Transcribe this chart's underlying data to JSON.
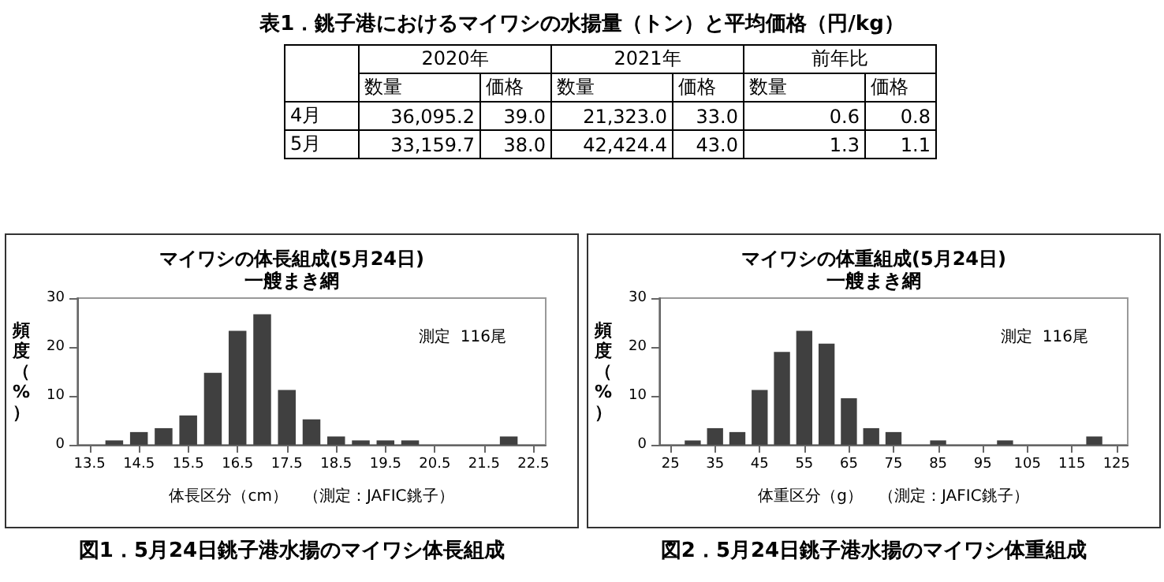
{
  "chart_data": [
    {
      "type": "other",
      "title": "表1．銚子港におけるマイワシの水揚量（トン）と平均価格（円/kg）",
      "categories": [
        "4月",
        "5月"
      ],
      "annotations": [
        "2020年",
        "2021年",
        "前年比",
        "数量",
        "価格",
        "数量",
        "価格",
        "数量",
        "価格"
      ],
      "series": [
        {
          "values": [
            36095.2,
            33159.7
          ],
          "value_labels": [
            "36,095.2",
            "33,159.7"
          ]
        },
        {
          "values": [
            39.0,
            38.0
          ],
          "value_labels": [
            "39.0",
            "38.0"
          ]
        },
        {
          "values": [
            21323.0,
            42424.4
          ],
          "value_labels": [
            "21,323.0",
            "42,424.4"
          ]
        },
        {
          "values": [
            33.0,
            43.0
          ],
          "value_labels": [
            "33.0",
            "43.0"
          ]
        },
        {
          "values": [
            0.6,
            1.3
          ],
          "value_labels": [
            "0.6",
            "1.3"
          ]
        },
        {
          "values": [
            0.8,
            1.1
          ],
          "value_labels": [
            "0.8",
            "1.1"
          ]
        }
      ]
    },
    {
      "type": "histogram",
      "title": "マイワシの体長組成(5月24日)",
      "subtitle": "一艘まき網",
      "ylabel": "頻度（%）",
      "xlabel": "体長区分（cm）　（測定：JAFIC銚子）",
      "annotations": [
        "測定  116尾",
        "図1．5月24日銚子港水揚のマイワシ体長組成"
      ],
      "bins": [
        13.25,
        13.75,
        14.25,
        14.75,
        15.25,
        15.75,
        16.25,
        16.75,
        17.25,
        17.75,
        18.25,
        18.75,
        19.25,
        19.75,
        20.25,
        20.75,
        21.25,
        21.75,
        22.25,
        22.75
      ],
      "values": [
        0,
        0.9,
        2.6,
        3.4,
        6.0,
        14.7,
        23.3,
        26.7,
        11.2,
        5.2,
        1.7,
        0.9,
        0.9,
        0.9,
        0,
        0,
        0,
        1.7,
        0
      ],
      "color": "#404040",
      "xlim": [
        13.25,
        22.75
      ],
      "xticks": [
        13.5,
        14.5,
        15.5,
        16.5,
        17.5,
        18.5,
        19.5,
        20.5,
        21.5,
        22.5
      ],
      "ylim": [
        0,
        30
      ],
      "yticks": [
        0,
        10,
        20,
        30
      ],
      "grid": false
    },
    {
      "type": "histogram",
      "title": "マイワシの体重組成(5月24日)",
      "subtitle": "一艘まき網",
      "ylabel": "頻度（%）",
      "xlabel": "体重区分（g）　（測定：JAFIC銚子）",
      "annotations": [
        "測定  116尾",
        "図2．5月24日銚子港水揚のマイワシ体重組成"
      ],
      "bins": [
        22.5,
        27.5,
        32.5,
        37.5,
        42.5,
        47.5,
        52.5,
        57.5,
        62.5,
        67.5,
        72.5,
        77.5,
        82.5,
        87.5,
        92.5,
        97.5,
        102.5,
        107.5,
        112.5,
        117.5,
        122.5,
        127.5
      ],
      "values": [
        0,
        0.9,
        3.4,
        2.6,
        11.2,
        19.0,
        23.3,
        20.7,
        9.5,
        3.4,
        2.6,
        0,
        0.9,
        0,
        0,
        0.9,
        0,
        0,
        0,
        1.7,
        0
      ],
      "color": "#404040",
      "xlim": [
        22.5,
        127.5
      ],
      "xticks": [
        25,
        35,
        45,
        55,
        65,
        75,
        85,
        95,
        105,
        115,
        125
      ],
      "ylim": [
        0,
        30
      ],
      "yticks": [
        0,
        10,
        20,
        30
      ],
      "grid": false
    }
  ]
}
